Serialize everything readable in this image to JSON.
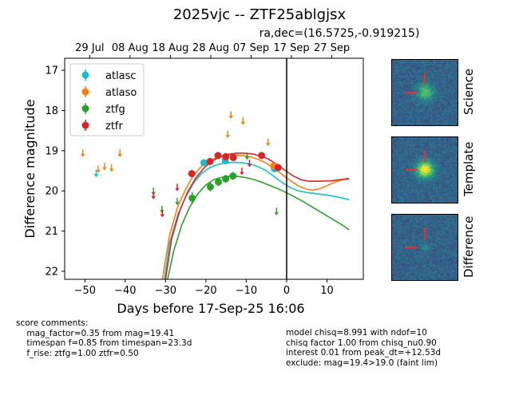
{
  "header": {
    "title": "2025vjc -- ZTF25ablgjsx",
    "coords": "ra,dec=(16.5725,-0.919215)"
  },
  "chart_data": {
    "type": "scatter",
    "xlabel": "Days before 17-Sep-25 16:06",
    "ylabel": "Difference magnitude",
    "xlim": [
      -55,
      19
    ],
    "ylim": [
      22.2,
      16.7
    ],
    "xticks": [
      -50,
      -40,
      -30,
      -20,
      -10,
      0,
      10
    ],
    "xtick_labels": [
      "−50",
      "−40",
      "−30",
      "−20",
      "−10",
      "0",
      "10"
    ],
    "yticks": [
      17,
      18,
      19,
      20,
      21,
      22
    ],
    "top_axis_ticks": [
      {
        "x": -48.8,
        "label": "29 Jul"
      },
      {
        "x": -38.8,
        "label": "08 Aug"
      },
      {
        "x": -28.8,
        "label": "18 Aug"
      },
      {
        "x": -18.8,
        "label": "28 Aug"
      },
      {
        "x": -8.8,
        "label": "07 Sep"
      },
      {
        "x": 1.2,
        "label": "17 Sep"
      },
      {
        "x": 11.2,
        "label": "27 Sep"
      }
    ],
    "reference_line_x": 0,
    "legend": {
      "position": "top-left",
      "entries": [
        "atlasc",
        "atlaso",
        "ztfg",
        "ztfr"
      ]
    },
    "series": [
      {
        "name": "atlasc",
        "color": "#17becf",
        "detections": [
          {
            "x": -20.5,
            "y": 19.3,
            "err": 0.08
          },
          {
            "x": -15.2,
            "y": 19.25,
            "err": 0.08
          },
          {
            "x": -3.0,
            "y": 19.45,
            "err": 0.06
          }
        ],
        "upper_limits": [
          {
            "x": -47.2,
            "y": 19.55
          }
        ],
        "model": [
          [
            -30.3,
            22.2
          ],
          [
            -29,
            21.3
          ],
          [
            -27,
            20.6
          ],
          [
            -25,
            20.15
          ],
          [
            -23,
            19.8
          ],
          [
            -21,
            19.56
          ],
          [
            -19,
            19.42
          ],
          [
            -17,
            19.34
          ],
          [
            -15,
            19.3
          ],
          [
            -13,
            19.29
          ],
          [
            -11,
            19.3
          ],
          [
            -9,
            19.33
          ],
          [
            -7,
            19.4
          ],
          [
            -5,
            19.5
          ],
          [
            -3,
            19.65
          ],
          [
            -1,
            19.8
          ],
          [
            1,
            19.92
          ],
          [
            3,
            20.0
          ],
          [
            5,
            20.04
          ],
          [
            8,
            20.08
          ],
          [
            11,
            20.12
          ],
          [
            14,
            20.18
          ],
          [
            15.5,
            20.22
          ]
        ]
      },
      {
        "name": "atlaso",
        "color": "#ff7f0e",
        "detections": [
          {
            "x": -3.2,
            "y": 19.38,
            "err": 0.05
          }
        ],
        "upper_limits": [
          {
            "x": -50.5,
            "y": 19.05
          },
          {
            "x": -46.7,
            "y": 19.45
          },
          {
            "x": -45.1,
            "y": 19.38
          },
          {
            "x": -43.4,
            "y": 19.42
          },
          {
            "x": -41.3,
            "y": 19.05
          },
          {
            "x": -14.6,
            "y": 18.58
          },
          {
            "x": -13.8,
            "y": 18.1
          },
          {
            "x": -10.8,
            "y": 18.25
          },
          {
            "x": -4.6,
            "y": 18.78
          }
        ],
        "model": [
          [
            -30.8,
            22.2
          ],
          [
            -29,
            21.1
          ],
          [
            -27,
            20.4
          ],
          [
            -25,
            19.95
          ],
          [
            -23,
            19.6
          ],
          [
            -21,
            19.38
          ],
          [
            -19,
            19.24
          ],
          [
            -17,
            19.16
          ],
          [
            -15,
            19.12
          ],
          [
            -13,
            19.11
          ],
          [
            -11,
            19.12
          ],
          [
            -9,
            19.15
          ],
          [
            -7,
            19.22
          ],
          [
            -5,
            19.31
          ],
          [
            -3,
            19.45
          ],
          [
            -1,
            19.6
          ],
          [
            1,
            19.75
          ],
          [
            3,
            19.88
          ],
          [
            5,
            19.96
          ],
          [
            6.5,
            19.98
          ],
          [
            8,
            19.95
          ],
          [
            10,
            19.87
          ],
          [
            12,
            19.78
          ],
          [
            14,
            19.72
          ],
          [
            15.5,
            19.7
          ]
        ]
      },
      {
        "name": "ztfg",
        "color": "#2ca02c",
        "detections": [
          {
            "x": -23.4,
            "y": 20.18,
            "err": 0.15
          },
          {
            "x": -18.9,
            "y": 19.9,
            "err": 0.12
          },
          {
            "x": -16.9,
            "y": 19.78,
            "err": 0.1
          },
          {
            "x": -15.1,
            "y": 19.7,
            "err": 0.1
          },
          {
            "x": -13.3,
            "y": 19.63,
            "err": 0.1
          }
        ],
        "upper_limits": [
          {
            "x": -33.0,
            "y": 20.0
          },
          {
            "x": -30.9,
            "y": 20.45
          },
          {
            "x": -27.1,
            "y": 20.25
          },
          {
            "x": -9.8,
            "y": 19.12
          },
          {
            "x": -2.5,
            "y": 20.5
          }
        ],
        "model": [
          [
            -29.5,
            22.2
          ],
          [
            -28,
            21.5
          ],
          [
            -26,
            20.85
          ],
          [
            -24,
            20.4
          ],
          [
            -22,
            20.07
          ],
          [
            -20,
            19.85
          ],
          [
            -18,
            19.72
          ],
          [
            -16,
            19.66
          ],
          [
            -14,
            19.63
          ],
          [
            -12,
            19.64
          ],
          [
            -10,
            19.67
          ],
          [
            -8,
            19.72
          ],
          [
            -6,
            19.79
          ],
          [
            -4,
            19.87
          ],
          [
            -2,
            19.95
          ],
          [
            0,
            20.05
          ],
          [
            2,
            20.15
          ],
          [
            4,
            20.26
          ],
          [
            6,
            20.38
          ],
          [
            8,
            20.5
          ],
          [
            10,
            20.62
          ],
          [
            12,
            20.74
          ],
          [
            14,
            20.86
          ],
          [
            15.5,
            20.97
          ]
        ]
      },
      {
        "name": "ztfr",
        "color": "#d62728",
        "detections": [
          {
            "x": -23.5,
            "y": 19.57,
            "err": 0.08
          },
          {
            "x": -19.0,
            "y": 19.27,
            "err": 0.07
          },
          {
            "x": -17.0,
            "y": 19.12,
            "err": 0.07
          },
          {
            "x": -15.1,
            "y": 19.15,
            "err": 0.07
          },
          {
            "x": -13.2,
            "y": 19.17,
            "err": 0.07
          },
          {
            "x": -6.2,
            "y": 19.12,
            "err": 0.07
          },
          {
            "x": -2.1,
            "y": 19.42,
            "err": 0.07
          }
        ],
        "upper_limits": [
          {
            "x": -33.0,
            "y": 20.1
          },
          {
            "x": -30.8,
            "y": 20.55
          },
          {
            "x": -27.1,
            "y": 19.9
          },
          {
            "x": -11.1,
            "y": 19.5
          },
          {
            "x": -9.2,
            "y": 19.3
          }
        ],
        "model": [
          [
            -30.0,
            22.2
          ],
          [
            -28.5,
            21.2
          ],
          [
            -26.5,
            20.5
          ],
          [
            -24.5,
            20.02
          ],
          [
            -22.5,
            19.68
          ],
          [
            -20.5,
            19.43
          ],
          [
            -18.5,
            19.26
          ],
          [
            -16.5,
            19.15
          ],
          [
            -14.5,
            19.09
          ],
          [
            -12.5,
            19.06
          ],
          [
            -10.5,
            19.06
          ],
          [
            -8.5,
            19.08
          ],
          [
            -6.5,
            19.13
          ],
          [
            -4.5,
            19.21
          ],
          [
            -2.5,
            19.33
          ],
          [
            -0.5,
            19.48
          ],
          [
            1.5,
            19.62
          ],
          [
            3.5,
            19.72
          ],
          [
            5.5,
            19.76
          ],
          [
            8,
            19.76
          ],
          [
            11,
            19.75
          ],
          [
            13.5,
            19.72
          ],
          [
            15.5,
            19.69
          ]
        ]
      }
    ]
  },
  "cutouts": [
    {
      "label": "Science",
      "blob": 0.55
    },
    {
      "label": "Template",
      "blob": 1.0
    },
    {
      "label": "Difference",
      "blob": 0.2
    }
  ],
  "comments": {
    "score": "score comments:\n    mag_factor=0.35 from mag=19.41\n    timespan f=0.85 from timespan=23.3d\n    f_rise: ztfg=1.00 ztfr=0.50",
    "model": "model chisq=8.991 with ndof=10\nchisq factor 1.00 from chisq_nu0.90\ninterest 0.01 from peak_dt=+12.53d\nexclude: mag=19.4>19.0 (faint lim)"
  }
}
